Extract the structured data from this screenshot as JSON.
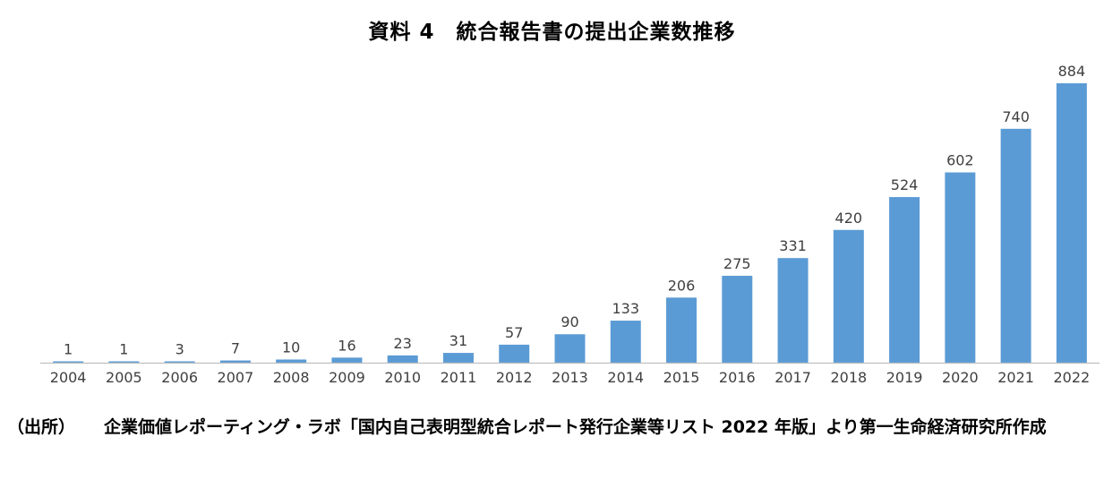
{
  "source": {
    "prefix": "（出所）",
    "text": "企業価値レポーティング・ラボ「国内自己表明型統合レポート発行企業等リスト 2022 年版」より第一生命経済研究所作成"
  },
  "colors": {
    "bar": "#5b9bd5",
    "axis": "#bfbfbf",
    "text": "#000000",
    "label": "#404040"
  },
  "chart_data": {
    "type": "bar",
    "title": "資料 4　統合報告書の提出企業数推移",
    "xlabel": "",
    "ylabel": "",
    "ylim": [
      0,
      884
    ],
    "grid": false,
    "legend": "none",
    "categories": [
      "2004",
      "2005",
      "2006",
      "2007",
      "2008",
      "2009",
      "2010",
      "2011",
      "2012",
      "2013",
      "2014",
      "2015",
      "2016",
      "2017",
      "2018",
      "2019",
      "2020",
      "2021",
      "2022"
    ],
    "values": [
      1,
      1,
      3,
      7,
      10,
      16,
      23,
      31,
      57,
      90,
      133,
      206,
      275,
      331,
      420,
      524,
      602,
      740,
      884
    ]
  }
}
